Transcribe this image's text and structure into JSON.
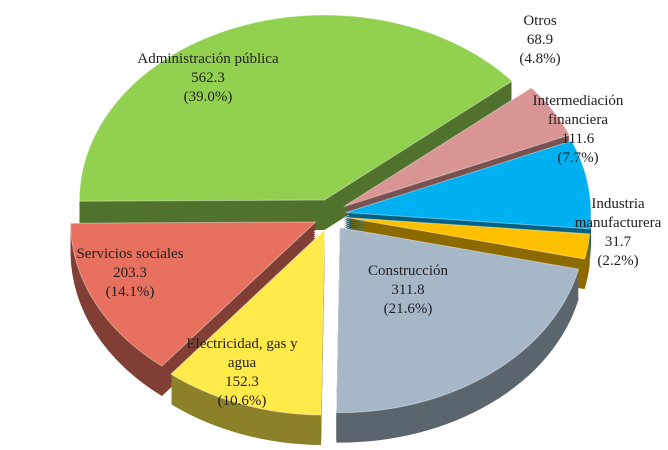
{
  "chart_data": {
    "type": "pie",
    "categories": [
      "Otros",
      "Intermediación financiera",
      "Industria manufacturera",
      "Construcción",
      "Electricidad, gas y agua",
      "Servicios sociales",
      "Administración pública"
    ],
    "values": [
      68.9,
      111.6,
      31.7,
      311.8,
      152.3,
      203.3,
      562.3
    ],
    "shares": {
      "values": [
        4.8,
        7.7,
        2.2,
        21.6,
        10.6,
        14.1,
        39.0
      ],
      "value_labels": [
        "(4.8%)",
        "(7.7%)",
        "(2.2%)",
        "(21.6%)",
        "(10.6%)",
        "(14.1%)",
        "(39.0%)"
      ]
    },
    "colors": [
      "#d99594",
      "#00b0f0",
      "#ffc000",
      "#a6b7c8",
      "#ffea4a",
      "#e8705f",
      "#92d050"
    ]
  }
}
